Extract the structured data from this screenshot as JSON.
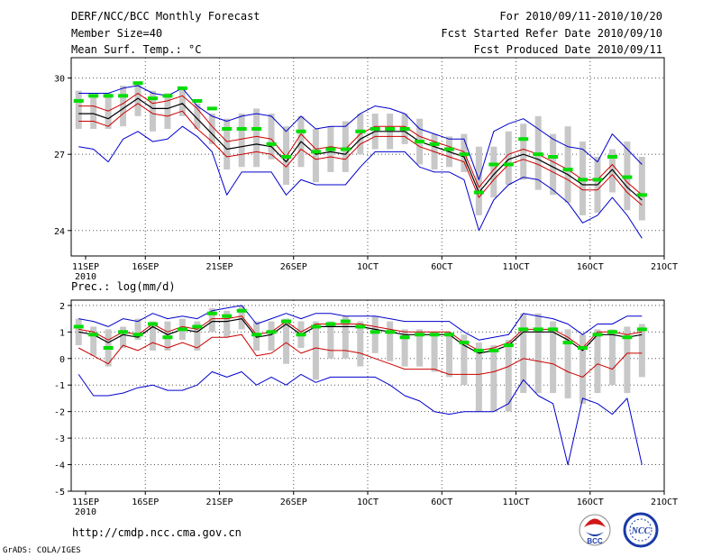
{
  "header": {
    "title": "DERF/NCC/BCC Monthly Forecast",
    "member_size": "Member Size=40",
    "variable": "Mean Surf. Temp.: °C",
    "period": "For 2010/09/11-2010/10/20",
    "fcst_started": "Fcst Started Refer Date 2010/09/10",
    "fcst_produced": "Fcst Produced Date 2010/09/11"
  },
  "footer": {
    "url": "http://cmdp.ncc.cma.gov.cn",
    "grads": "GrADS: COLA/IGES",
    "logo_left_text": "BCC",
    "logo_right_text": "NCC"
  },
  "colors": {
    "ensemble_mean": "#000000",
    "member_min_max": "#0000cc",
    "spread": "#cc0000",
    "observed_bar": "#00dd00",
    "box": "#c8c8c8",
    "grid": "#555555"
  },
  "chart_data": [
    {
      "type": "line",
      "title": "Mean Surf. Temp.: °C",
      "ylim": [
        23,
        30.8
      ],
      "yticks": [
        24,
        27,
        30
      ],
      "ytick_labels": [
        "24",
        "27",
        "30"
      ],
      "xlim": [
        0,
        40
      ],
      "xticks": [
        0,
        5,
        10,
        15,
        20,
        25,
        30,
        35,
        40
      ],
      "xtick_labels": [
        "11SEP",
        "16SEP",
        "21SEP",
        "26SEP",
        "1OCT",
        "6OCT",
        "11OCT",
        "16OCT",
        "21OCT"
      ],
      "xtick_sub": "2010",
      "box_low": [
        28.0,
        28.0,
        28.0,
        28.1,
        28.5,
        27.9,
        28.0,
        28.5,
        28.0,
        27.4,
        26.4,
        26.5,
        26.5,
        26.8,
        25.8,
        26.5,
        25.9,
        26.3,
        26.3,
        27.0,
        27.2,
        27.2,
        27.4,
        26.6,
        26.4,
        26.5,
        26.3,
        24.6,
        25.3,
        25.8,
        26.0,
        25.6,
        25.4,
        25.1,
        24.6,
        24.7,
        25.5,
        24.8,
        24.4
      ],
      "box_high": [
        29.5,
        29.3,
        29.4,
        29.7,
        29.8,
        29.5,
        29.4,
        29.6,
        29.0,
        28.6,
        28.4,
        28.6,
        28.8,
        28.6,
        28.1,
        28.5,
        28.0,
        28.1,
        28.3,
        28.6,
        28.6,
        28.6,
        28.6,
        28.4,
        27.8,
        27.7,
        27.8,
        27.3,
        27.3,
        27.9,
        28.2,
        28.5,
        27.8,
        28.1,
        27.5,
        26.9,
        27.2,
        27.5,
        26.9
      ],
      "series": [
        {
          "name": "Ensemble Mean",
          "values": [
            28.6,
            28.6,
            28.4,
            28.8,
            29.2,
            28.8,
            28.8,
            29.0,
            28.4,
            27.8,
            27.2,
            27.3,
            27.4,
            27.3,
            26.7,
            27.5,
            27.0,
            27.1,
            27.0,
            27.6,
            27.9,
            27.9,
            27.9,
            27.5,
            27.3,
            27.1,
            26.9,
            25.5,
            26.2,
            26.8,
            27.0,
            26.8,
            26.5,
            26.2,
            25.8,
            25.8,
            26.4,
            25.7,
            25.2
          ]
        },
        {
          "name": "Member Max",
          "values": [
            29.4,
            29.4,
            29.4,
            29.6,
            29.7,
            29.4,
            29.3,
            29.6,
            28.9,
            28.5,
            28.3,
            28.5,
            28.6,
            28.5,
            27.9,
            28.5,
            28.0,
            28.1,
            28.1,
            28.6,
            28.9,
            28.8,
            28.6,
            28.0,
            27.8,
            27.6,
            27.6,
            26.0,
            27.9,
            28.2,
            28.4,
            28.0,
            27.6,
            27.3,
            27.2,
            26.7,
            27.8,
            27.2,
            26.6
          ]
        },
        {
          "name": "Member Min",
          "values": [
            27.3,
            27.2,
            26.7,
            27.6,
            27.9,
            27.5,
            27.6,
            28.1,
            27.7,
            27.1,
            25.4,
            26.3,
            26.3,
            26.3,
            25.4,
            26.0,
            25.8,
            25.8,
            25.8,
            26.5,
            27.1,
            27.1,
            27.1,
            26.5,
            26.3,
            26.3,
            26.0,
            24.0,
            25.2,
            25.8,
            26.1,
            26.0,
            25.6,
            25.1,
            24.3,
            24.6,
            25.3,
            24.6,
            23.7
          ]
        },
        {
          "name": "Mean + Spread",
          "values": [
            28.9,
            28.9,
            28.7,
            29.0,
            29.4,
            29.0,
            29.1,
            29.3,
            28.8,
            28.1,
            27.5,
            27.6,
            27.7,
            27.6,
            26.9,
            27.8,
            27.2,
            27.3,
            27.2,
            27.8,
            28.1,
            28.1,
            28.1,
            27.7,
            27.5,
            27.3,
            27.1,
            25.7,
            26.4,
            27.0,
            27.2,
            27.0,
            26.7,
            26.4,
            26.0,
            26.0,
            26.6,
            25.9,
            25.4
          ]
        },
        {
          "name": "Mean - Spread",
          "values": [
            28.3,
            28.3,
            28.1,
            28.6,
            29.0,
            28.6,
            28.5,
            28.7,
            28.0,
            27.5,
            26.9,
            27.0,
            27.1,
            27.0,
            26.5,
            27.2,
            26.8,
            26.9,
            26.8,
            27.4,
            27.7,
            27.7,
            27.7,
            27.3,
            27.1,
            26.9,
            26.7,
            25.3,
            26.0,
            26.6,
            26.8,
            26.6,
            26.3,
            26.0,
            25.6,
            25.6,
            26.2,
            25.5,
            25.0
          ]
        }
      ],
      "observed": [
        29.1,
        29.3,
        29.3,
        29.3,
        29.8,
        29.2,
        29.3,
        29.6,
        29.1,
        28.8,
        28.0,
        28.0,
        28.0,
        27.4,
        26.9,
        27.9,
        27.1,
        27.2,
        27.2,
        27.9,
        28.0,
        28.0,
        28.0,
        27.5,
        27.4,
        27.2,
        27.0,
        25.5,
        26.6,
        26.6,
        27.6,
        27.0,
        26.9,
        26.4,
        26.0,
        26.0,
        26.9,
        26.1,
        25.4
      ]
    },
    {
      "type": "line",
      "title": "Prec.: log(mm/d)",
      "ylim": [
        -5,
        2.2
      ],
      "yticks": [
        -5,
        -4,
        -3,
        -2,
        -1,
        0,
        1,
        2
      ],
      "ytick_labels": [
        "-5",
        "-4",
        "-3",
        "-2",
        "-1",
        "0",
        "1",
        "2"
      ],
      "xlim": [
        0,
        40
      ],
      "xticks": [
        0,
        5,
        10,
        15,
        20,
        25,
        30,
        35,
        40
      ],
      "xtick_labels": [
        "11SEP",
        "16SEP",
        "21SEP",
        "26SEP",
        "1OCT",
        "6OCT",
        "11OCT",
        "16OCT",
        "21OCT"
      ],
      "xtick_sub": "2010",
      "box_low": [
        0.5,
        0.1,
        -0.3,
        0.4,
        0.7,
        0.3,
        0.3,
        0.7,
        0.3,
        1.0,
        0.8,
        1.1,
        0.3,
        0.3,
        -0.2,
        0.4,
        -0.8,
        0.0,
        0.0,
        -0.3,
        0.2,
        -0.1,
        -0.3,
        -0.3,
        -0.5,
        -0.7,
        -1.0,
        -2.0,
        -2.0,
        -2.0,
        -1.3,
        -1.3,
        -1.3,
        -1.5,
        -1.7,
        -1.3,
        -1.0,
        -1.3,
        -0.7
      ],
      "box_high": [
        1.5,
        1.2,
        1.1,
        1.2,
        1.5,
        1.4,
        1.4,
        1.5,
        1.4,
        1.9,
        1.8,
        2.0,
        1.4,
        1.4,
        1.5,
        1.4,
        1.4,
        1.4,
        1.6,
        1.4,
        1.6,
        1.4,
        1.1,
        1.1,
        1.0,
        1.0,
        0.9,
        0.6,
        0.5,
        0.7,
        1.7,
        1.7,
        1.4,
        1.1,
        0.9,
        1.1,
        1.1,
        1.2,
        1.3
      ],
      "series": [
        {
          "name": "Ensemble Mean",
          "values": [
            1.0,
            0.9,
            0.6,
            0.9,
            0.8,
            1.2,
            0.9,
            1.1,
            1.0,
            1.4,
            1.4,
            1.5,
            0.8,
            0.9,
            1.3,
            0.9,
            1.2,
            1.2,
            1.2,
            1.2,
            1.1,
            1.0,
            0.9,
            0.9,
            0.9,
            0.9,
            0.5,
            0.2,
            0.3,
            0.5,
            1.0,
            1.0,
            1.0,
            0.7,
            0.3,
            0.9,
            0.9,
            0.8,
            0.9
          ]
        },
        {
          "name": "Member Max",
          "values": [
            1.5,
            1.4,
            1.2,
            1.5,
            1.4,
            1.7,
            1.5,
            1.6,
            1.5,
            1.8,
            1.9,
            2.0,
            1.3,
            1.5,
            1.7,
            1.5,
            1.7,
            1.7,
            1.6,
            1.6,
            1.6,
            1.5,
            1.4,
            1.4,
            1.4,
            1.4,
            1.0,
            0.7,
            0.8,
            0.9,
            1.7,
            1.6,
            1.5,
            1.3,
            0.9,
            1.3,
            1.3,
            1.6,
            1.6
          ]
        },
        {
          "name": "Member Min",
          "values": [
            -0.6,
            -1.4,
            -1.4,
            -1.3,
            -1.1,
            -1.0,
            -1.2,
            -1.2,
            -1.0,
            -0.5,
            -0.7,
            -0.5,
            -1.0,
            -0.7,
            -1.0,
            -0.6,
            -0.9,
            -0.7,
            -0.7,
            -0.7,
            -0.7,
            -1.0,
            -1.4,
            -1.6,
            -2.0,
            -2.1,
            -2.0,
            -2.0,
            -2.0,
            -1.7,
            -0.8,
            -1.4,
            -1.7,
            -4.0,
            -1.5,
            -1.7,
            -2.1,
            -1.5,
            -4.0
          ]
        },
        {
          "name": "Mean + Spread",
          "values": [
            1.1,
            1.0,
            0.7,
            1.0,
            0.9,
            1.3,
            1.0,
            1.2,
            1.1,
            1.5,
            1.5,
            1.6,
            0.9,
            1.0,
            1.4,
            1.0,
            1.3,
            1.3,
            1.3,
            1.3,
            1.2,
            1.1,
            1.0,
            1.0,
            1.0,
            1.0,
            0.6,
            0.3,
            0.4,
            0.6,
            1.1,
            1.1,
            1.1,
            0.8,
            0.4,
            1.0,
            1.0,
            0.9,
            1.0
          ]
        },
        {
          "name": "Mean - Spread",
          "values": [
            0.4,
            0.1,
            -0.2,
            0.5,
            0.3,
            0.6,
            0.4,
            0.6,
            0.4,
            0.8,
            0.8,
            0.9,
            0.1,
            0.2,
            0.6,
            0.2,
            0.4,
            0.3,
            0.3,
            0.2,
            0.0,
            -0.2,
            -0.4,
            -0.4,
            -0.4,
            -0.6,
            -0.6,
            -0.6,
            -0.5,
            -0.3,
            0.0,
            -0.1,
            -0.2,
            -0.5,
            -0.7,
            -0.2,
            -0.4,
            0.2,
            0.2
          ]
        }
      ],
      "observed": [
        1.2,
        0.9,
        0.4,
        1.0,
        0.9,
        1.3,
        0.8,
        1.1,
        1.2,
        1.7,
        1.6,
        1.8,
        0.9,
        1.0,
        1.4,
        0.9,
        1.2,
        1.3,
        1.4,
        1.2,
        1.0,
        1.0,
        0.8,
        0.9,
        0.9,
        0.9,
        0.6,
        0.3,
        0.3,
        0.5,
        1.1,
        1.1,
        1.1,
        0.6,
        0.4,
        0.9,
        1.0,
        0.8,
        1.1
      ]
    }
  ]
}
